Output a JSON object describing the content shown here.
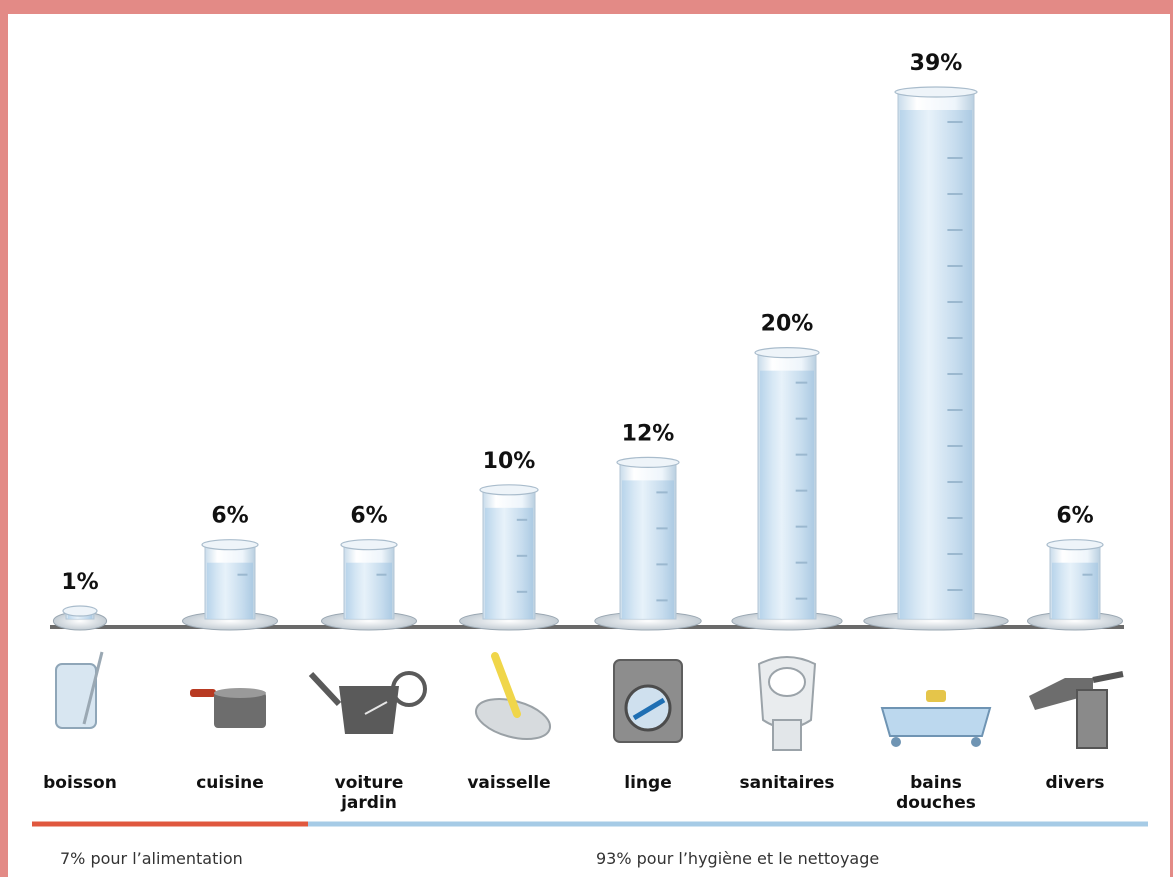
{
  "chart_data": {
    "type": "bar",
    "categories": [
      [
        "boisson"
      ],
      [
        "cuisine"
      ],
      [
        "voiture",
        "jardin"
      ],
      [
        "vaisselle"
      ],
      [
        "linge"
      ],
      [
        "sanitaires"
      ],
      [
        "bains",
        "douches"
      ],
      [
        "divers"
      ]
    ],
    "icons": [
      "glass-icon",
      "saucepan-icon",
      "watering-can-icon",
      "dish-sponge-icon",
      "washing-machine-icon",
      "toilet-icon",
      "bathtub-icon",
      "faucet-icon"
    ],
    "values": [
      1,
      6,
      6,
      10,
      12,
      20,
      39,
      6
    ],
    "value_labels": [
      "1%",
      "6%",
      "6%",
      "10%",
      "12%",
      "20%",
      "39%",
      "6%"
    ],
    "groups": [
      {
        "label": "7% pour l’alimentation",
        "color": "#e0583e",
        "from": 0,
        "to": 1
      },
      {
        "label": "93% pour l’hygiène et le nettoyage",
        "color": "#a6cbe6",
        "from": 2,
        "to": 7
      }
    ],
    "colors": {
      "cylinder": "#f3f8fc",
      "water": "#cfe3f3",
      "ground": "#6a6a6a",
      "border": "#e38a86"
    }
  }
}
